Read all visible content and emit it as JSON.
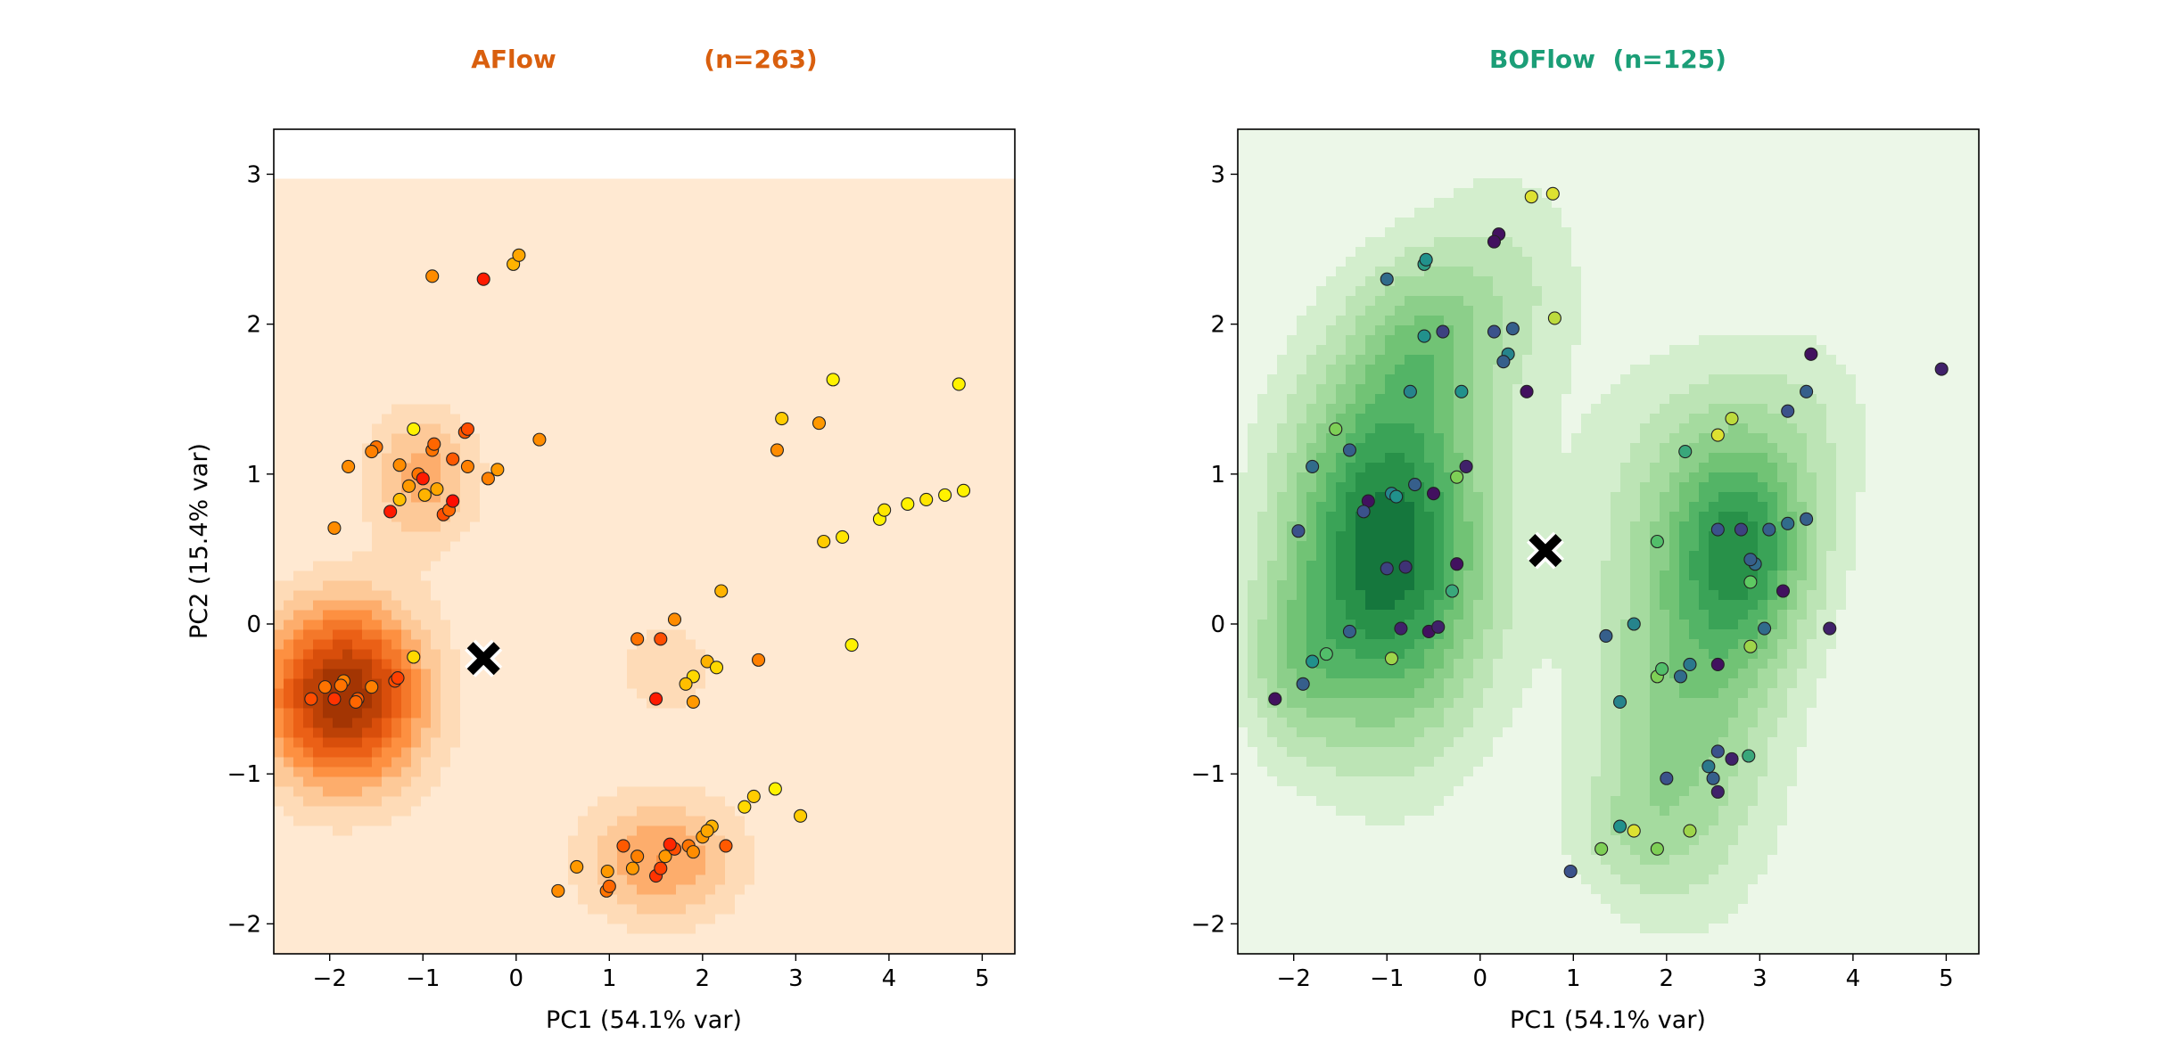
{
  "chart_data": [
    {
      "type": "scatter",
      "title_parts": [
        "AFlow",
        "(n=263)"
      ],
      "title_color": "#d95f0e",
      "xlabel": "PC1 (54.1% var)",
      "ylabel": "PC2 (15.4% var)",
      "xlim": [
        -2.6,
        5.35
      ],
      "ylim": [
        -2.2,
        3.3
      ],
      "xticks": [
        -2,
        -1,
        0,
        1,
        2,
        3,
        4,
        5
      ],
      "yticks": [
        -2,
        -1,
        0,
        1,
        2,
        3
      ],
      "grid": false,
      "colormap": "autumn",
      "density_colormap": "Oranges",
      "density_centers": [
        {
          "x": -1.85,
          "y": -0.48,
          "sx": 0.6,
          "sy": 0.42,
          "w": 1.0
        },
        {
          "x": -1.0,
          "y": 0.98,
          "sx": 0.42,
          "sy": 0.32,
          "w": 0.35
        },
        {
          "x": 1.55,
          "y": -1.57,
          "sx": 0.6,
          "sy": 0.3,
          "w": 0.4
        },
        {
          "x": 1.6,
          "y": -0.3,
          "sx": 0.5,
          "sy": 0.3,
          "w": 0.14
        },
        {
          "x": 3.7,
          "y": 0.8,
          "sx": 1.1,
          "sy": 0.8,
          "w": 0.05
        },
        {
          "x": 0.0,
          "y": 2.2,
          "sx": 0.6,
          "sy": 0.5,
          "w": 0.03
        }
      ],
      "marker": {
        "x": -0.35,
        "y": -0.23,
        "label": "x"
      },
      "points": [
        {
          "x": -0.9,
          "y": 2.32,
          "c": 0.55
        },
        {
          "x": -0.35,
          "y": 2.3,
          "c": 0.1
        },
        {
          "x": -0.03,
          "y": 2.4,
          "c": 0.7
        },
        {
          "x": 0.03,
          "y": 2.46,
          "c": 0.65
        },
        {
          "x": -1.5,
          "y": 1.18,
          "c": 0.45
        },
        {
          "x": -1.55,
          "y": 1.15,
          "c": 0.5
        },
        {
          "x": -1.1,
          "y": 1.3,
          "c": 0.95
        },
        {
          "x": -0.9,
          "y": 1.16,
          "c": 0.45
        },
        {
          "x": -0.88,
          "y": 1.2,
          "c": 0.4
        },
        {
          "x": -0.55,
          "y": 1.28,
          "c": 0.35
        },
        {
          "x": -0.52,
          "y": 1.3,
          "c": 0.3
        },
        {
          "x": -1.8,
          "y": 1.05,
          "c": 0.55
        },
        {
          "x": -1.25,
          "y": 1.06,
          "c": 0.55
        },
        {
          "x": -1.05,
          "y": 1.0,
          "c": 0.45
        },
        {
          "x": -0.68,
          "y": 1.1,
          "c": 0.35
        },
        {
          "x": -0.52,
          "y": 1.05,
          "c": 0.5
        },
        {
          "x": -0.3,
          "y": 0.97,
          "c": 0.5
        },
        {
          "x": -0.2,
          "y": 1.03,
          "c": 0.6
        },
        {
          "x": 0.25,
          "y": 1.23,
          "c": 0.55
        },
        {
          "x": -1.0,
          "y": 0.97,
          "c": 0.1
        },
        {
          "x": -1.15,
          "y": 0.92,
          "c": 0.6
        },
        {
          "x": -0.98,
          "y": 0.86,
          "c": 0.7
        },
        {
          "x": -0.85,
          "y": 0.9,
          "c": 0.65
        },
        {
          "x": -1.25,
          "y": 0.83,
          "c": 0.75
        },
        {
          "x": -1.35,
          "y": 0.75,
          "c": 0.1
        },
        {
          "x": -0.78,
          "y": 0.73,
          "c": 0.3
        },
        {
          "x": -0.72,
          "y": 0.76,
          "c": 0.4
        },
        {
          "x": -0.68,
          "y": 0.82,
          "c": 0.05
        },
        {
          "x": -1.95,
          "y": 0.64,
          "c": 0.55
        },
        {
          "x": -2.2,
          "y": -0.5,
          "c": 0.3
        },
        {
          "x": -2.05,
          "y": -0.42,
          "c": 0.45
        },
        {
          "x": -1.95,
          "y": -0.5,
          "c": 0.2
        },
        {
          "x": -1.85,
          "y": -0.38,
          "c": 0.5
        },
        {
          "x": -1.88,
          "y": -0.41,
          "c": 0.45
        },
        {
          "x": -1.7,
          "y": -0.5,
          "c": 0.35
        },
        {
          "x": -1.55,
          "y": -0.42,
          "c": 0.5
        },
        {
          "x": -1.3,
          "y": -0.38,
          "c": 0.3
        },
        {
          "x": -1.27,
          "y": -0.36,
          "c": 0.25
        },
        {
          "x": -1.1,
          "y": -0.22,
          "c": 0.85
        },
        {
          "x": -1.72,
          "y": -0.52,
          "c": 0.4
        },
        {
          "x": 1.3,
          "y": -0.1,
          "c": 0.45
        },
        {
          "x": 1.55,
          "y": -0.1,
          "c": 0.3
        },
        {
          "x": 1.7,
          "y": 0.03,
          "c": 0.55
        },
        {
          "x": 2.2,
          "y": 0.22,
          "c": 0.7
        },
        {
          "x": 2.05,
          "y": -0.25,
          "c": 0.7
        },
        {
          "x": 2.15,
          "y": -0.29,
          "c": 0.85
        },
        {
          "x": 1.9,
          "y": -0.35,
          "c": 0.85
        },
        {
          "x": 1.82,
          "y": -0.4,
          "c": 0.75
        },
        {
          "x": 2.6,
          "y": -0.24,
          "c": 0.5
        },
        {
          "x": 1.5,
          "y": -0.5,
          "c": 0.1
        },
        {
          "x": 1.9,
          "y": -0.52,
          "c": 0.6
        },
        {
          "x": 0.45,
          "y": -1.78,
          "c": 0.55
        },
        {
          "x": 0.65,
          "y": -1.62,
          "c": 0.6
        },
        {
          "x": 0.97,
          "y": -1.78,
          "c": 0.45
        },
        {
          "x": 1.0,
          "y": -1.75,
          "c": 0.4
        },
        {
          "x": 0.98,
          "y": -1.65,
          "c": 0.6
        },
        {
          "x": 1.15,
          "y": -1.48,
          "c": 0.35
        },
        {
          "x": 1.25,
          "y": -1.63,
          "c": 0.6
        },
        {
          "x": 1.3,
          "y": -1.55,
          "c": 0.5
        },
        {
          "x": 1.5,
          "y": -1.68,
          "c": 0.2
        },
        {
          "x": 1.55,
          "y": -1.63,
          "c": 0.25
        },
        {
          "x": 1.6,
          "y": -1.55,
          "c": 0.6
        },
        {
          "x": 1.7,
          "y": -1.5,
          "c": 0.3
        },
        {
          "x": 1.65,
          "y": -1.47,
          "c": 0.15
        },
        {
          "x": 1.85,
          "y": -1.48,
          "c": 0.45
        },
        {
          "x": 1.9,
          "y": -1.52,
          "c": 0.55
        },
        {
          "x": 2.0,
          "y": -1.42,
          "c": 0.6
        },
        {
          "x": 2.1,
          "y": -1.35,
          "c": 0.7
        },
        {
          "x": 2.05,
          "y": -1.38,
          "c": 0.65
        },
        {
          "x": 2.25,
          "y": -1.48,
          "c": 0.35
        },
        {
          "x": 2.45,
          "y": -1.22,
          "c": 0.85
        },
        {
          "x": 2.55,
          "y": -1.15,
          "c": 0.8
        },
        {
          "x": 2.78,
          "y": -1.1,
          "c": 0.95
        },
        {
          "x": 3.05,
          "y": -1.28,
          "c": 0.8
        },
        {
          "x": 2.8,
          "y": 1.16,
          "c": 0.55
        },
        {
          "x": 2.85,
          "y": 1.37,
          "c": 0.8
        },
        {
          "x": 3.25,
          "y": 1.34,
          "c": 0.6
        },
        {
          "x": 3.4,
          "y": 1.63,
          "c": 0.95
        },
        {
          "x": 3.3,
          "y": 0.55,
          "c": 0.8
        },
        {
          "x": 3.5,
          "y": 0.58,
          "c": 0.9
        },
        {
          "x": 3.9,
          "y": 0.7,
          "c": 0.95
        },
        {
          "x": 3.95,
          "y": 0.76,
          "c": 0.9
        },
        {
          "x": 4.2,
          "y": 0.8,
          "c": 0.95
        },
        {
          "x": 4.4,
          "y": 0.83,
          "c": 0.9
        },
        {
          "x": 4.6,
          "y": 0.86,
          "c": 0.95
        },
        {
          "x": 4.8,
          "y": 0.89,
          "c": 0.95
        },
        {
          "x": 4.75,
          "y": 1.6,
          "c": 0.95
        },
        {
          "x": 3.6,
          "y": -0.14,
          "c": 0.95
        }
      ]
    },
    {
      "type": "scatter",
      "title_parts": [
        "BOFlow  (n=125)"
      ],
      "title_color": "#1b9e77",
      "xlabel": "PC1 (54.1% var)",
      "ylabel": "",
      "xlim": [
        -2.6,
        5.35
      ],
      "ylim": [
        -2.2,
        3.3
      ],
      "xticks": [
        -2,
        -1,
        0,
        1,
        2,
        3,
        4,
        5
      ],
      "yticks": [
        -2,
        -1,
        0,
        1,
        2,
        3
      ],
      "grid": false,
      "colormap": "viridis",
      "density_colormap": "Greens",
      "density_centers": [
        {
          "x": -1.0,
          "y": 0.5,
          "sx": 0.75,
          "sy": 0.85,
          "w": 1.0
        },
        {
          "x": -0.6,
          "y": 1.9,
          "sx": 0.5,
          "sy": 0.4,
          "w": 0.3
        },
        {
          "x": 0.3,
          "y": 2.3,
          "sx": 0.6,
          "sy": 0.55,
          "w": 0.2
        },
        {
          "x": 2.85,
          "y": 0.45,
          "sx": 0.5,
          "sy": 0.5,
          "w": 0.55
        },
        {
          "x": 2.2,
          "y": -0.5,
          "sx": 0.7,
          "sy": 0.9,
          "w": 0.45
        },
        {
          "x": 2.6,
          "y": 1.0,
          "sx": 0.9,
          "sy": 0.6,
          "w": 0.25
        },
        {
          "x": -2.0,
          "y": -0.3,
          "sx": 0.4,
          "sy": 0.4,
          "w": 0.25
        },
        {
          "x": 1.6,
          "y": -1.4,
          "sx": 0.5,
          "sy": 0.3,
          "w": 0.15
        },
        {
          "x": 3.6,
          "y": 1.5,
          "sx": 0.5,
          "sy": 0.4,
          "w": 0.08
        }
      ],
      "marker": {
        "x": 0.7,
        "y": 0.49,
        "label": "x"
      },
      "points": [
        {
          "x": 0.55,
          "y": 2.85,
          "c": 0.95
        },
        {
          "x": 0.78,
          "y": 2.87,
          "c": 0.95
        },
        {
          "x": 0.2,
          "y": 2.6,
          "c": 0.05
        },
        {
          "x": 0.15,
          "y": 2.55,
          "c": 0.05
        },
        {
          "x": -0.6,
          "y": 2.4,
          "c": 0.55
        },
        {
          "x": -0.58,
          "y": 2.43,
          "c": 0.5
        },
        {
          "x": -1.0,
          "y": 2.3,
          "c": 0.35
        },
        {
          "x": -0.4,
          "y": 1.95,
          "c": 0.2
        },
        {
          "x": -0.6,
          "y": 1.92,
          "c": 0.5
        },
        {
          "x": 0.15,
          "y": 1.95,
          "c": 0.25
        },
        {
          "x": 0.35,
          "y": 1.97,
          "c": 0.3
        },
        {
          "x": 0.3,
          "y": 1.8,
          "c": 0.45
        },
        {
          "x": 0.25,
          "y": 1.75,
          "c": 0.3
        },
        {
          "x": 0.8,
          "y": 2.04,
          "c": 0.9
        },
        {
          "x": 0.5,
          "y": 1.55,
          "c": 0.05
        },
        {
          "x": -0.75,
          "y": 1.55,
          "c": 0.45
        },
        {
          "x": -0.2,
          "y": 1.55,
          "c": 0.5
        },
        {
          "x": -1.8,
          "y": 1.05,
          "c": 0.35
        },
        {
          "x": -1.4,
          "y": 1.16,
          "c": 0.3
        },
        {
          "x": -1.55,
          "y": 1.3,
          "c": 0.8
        },
        {
          "x": -1.2,
          "y": 0.82,
          "c": 0.05
        },
        {
          "x": -1.25,
          "y": 0.75,
          "c": 0.25
        },
        {
          "x": -1.95,
          "y": 0.62,
          "c": 0.25
        },
        {
          "x": -0.95,
          "y": 0.87,
          "c": 0.45
        },
        {
          "x": -0.9,
          "y": 0.85,
          "c": 0.5
        },
        {
          "x": -0.7,
          "y": 0.93,
          "c": 0.3
        },
        {
          "x": -0.5,
          "y": 0.87,
          "c": 0.05
        },
        {
          "x": -0.15,
          "y": 1.05,
          "c": 0.1
        },
        {
          "x": -0.25,
          "y": 0.98,
          "c": 0.8
        },
        {
          "x": -1.0,
          "y": 0.37,
          "c": 0.2
        },
        {
          "x": -0.8,
          "y": 0.38,
          "c": 0.15
        },
        {
          "x": -0.25,
          "y": 0.4,
          "c": 0.05
        },
        {
          "x": -0.3,
          "y": 0.22,
          "c": 0.6
        },
        {
          "x": -1.4,
          "y": -0.05,
          "c": 0.3
        },
        {
          "x": -0.55,
          "y": -0.05,
          "c": 0.05
        },
        {
          "x": -0.45,
          "y": -0.02,
          "c": 0.1
        },
        {
          "x": -0.85,
          "y": -0.03,
          "c": 0.1
        },
        {
          "x": -1.8,
          "y": -0.25,
          "c": 0.5
        },
        {
          "x": -1.65,
          "y": -0.2,
          "c": 0.7
        },
        {
          "x": -0.95,
          "y": -0.23,
          "c": 0.85
        },
        {
          "x": -1.9,
          "y": -0.4,
          "c": 0.3
        },
        {
          "x": -2.2,
          "y": -0.5,
          "c": 0.05
        },
        {
          "x": 3.55,
          "y": 1.8,
          "c": 0.05
        },
        {
          "x": 3.5,
          "y": 1.55,
          "c": 0.3
        },
        {
          "x": 3.3,
          "y": 1.42,
          "c": 0.25
        },
        {
          "x": 2.7,
          "y": 1.37,
          "c": 0.9
        },
        {
          "x": 2.55,
          "y": 1.26,
          "c": 0.95
        },
        {
          "x": 2.2,
          "y": 1.15,
          "c": 0.6
        },
        {
          "x": 2.55,
          "y": 0.63,
          "c": 0.25
        },
        {
          "x": 2.8,
          "y": 0.63,
          "c": 0.2
        },
        {
          "x": 3.1,
          "y": 0.63,
          "c": 0.3
        },
        {
          "x": 3.3,
          "y": 0.67,
          "c": 0.35
        },
        {
          "x": 3.5,
          "y": 0.7,
          "c": 0.3
        },
        {
          "x": 1.9,
          "y": 0.55,
          "c": 0.7
        },
        {
          "x": 2.95,
          "y": 0.4,
          "c": 0.35
        },
        {
          "x": 2.9,
          "y": 0.43,
          "c": 0.3
        },
        {
          "x": 2.9,
          "y": 0.28,
          "c": 0.75
        },
        {
          "x": 3.25,
          "y": 0.22,
          "c": 0.05
        },
        {
          "x": 1.35,
          "y": -0.08,
          "c": 0.3
        },
        {
          "x": 1.65,
          "y": 0.0,
          "c": 0.45
        },
        {
          "x": 3.05,
          "y": -0.03,
          "c": 0.35
        },
        {
          "x": 3.75,
          "y": -0.03,
          "c": 0.1
        },
        {
          "x": 2.9,
          "y": -0.15,
          "c": 0.85
        },
        {
          "x": 2.25,
          "y": -0.27,
          "c": 0.4
        },
        {
          "x": 2.55,
          "y": -0.27,
          "c": 0.05
        },
        {
          "x": 1.9,
          "y": -0.35,
          "c": 0.8
        },
        {
          "x": 1.95,
          "y": -0.3,
          "c": 0.7
        },
        {
          "x": 2.15,
          "y": -0.35,
          "c": 0.35
        },
        {
          "x": 1.5,
          "y": -0.52,
          "c": 0.45
        },
        {
          "x": 2.55,
          "y": -0.85,
          "c": 0.25
        },
        {
          "x": 2.7,
          "y": -0.9,
          "c": 0.1
        },
        {
          "x": 2.45,
          "y": -0.95,
          "c": 0.4
        },
        {
          "x": 2.88,
          "y": -0.88,
          "c": 0.6
        },
        {
          "x": 2.0,
          "y": -1.03,
          "c": 0.25
        },
        {
          "x": 2.5,
          "y": -1.03,
          "c": 0.3
        },
        {
          "x": 2.55,
          "y": -1.12,
          "c": 0.1
        },
        {
          "x": 1.5,
          "y": -1.35,
          "c": 0.5
        },
        {
          "x": 1.65,
          "y": -1.38,
          "c": 0.95
        },
        {
          "x": 2.25,
          "y": -1.38,
          "c": 0.85
        },
        {
          "x": 1.3,
          "y": -1.5,
          "c": 0.8
        },
        {
          "x": 1.9,
          "y": -1.5,
          "c": 0.8
        },
        {
          "x": 0.97,
          "y": -1.65,
          "c": 0.25
        },
        {
          "x": 4.95,
          "y": 1.7,
          "c": 0.1
        }
      ]
    }
  ]
}
